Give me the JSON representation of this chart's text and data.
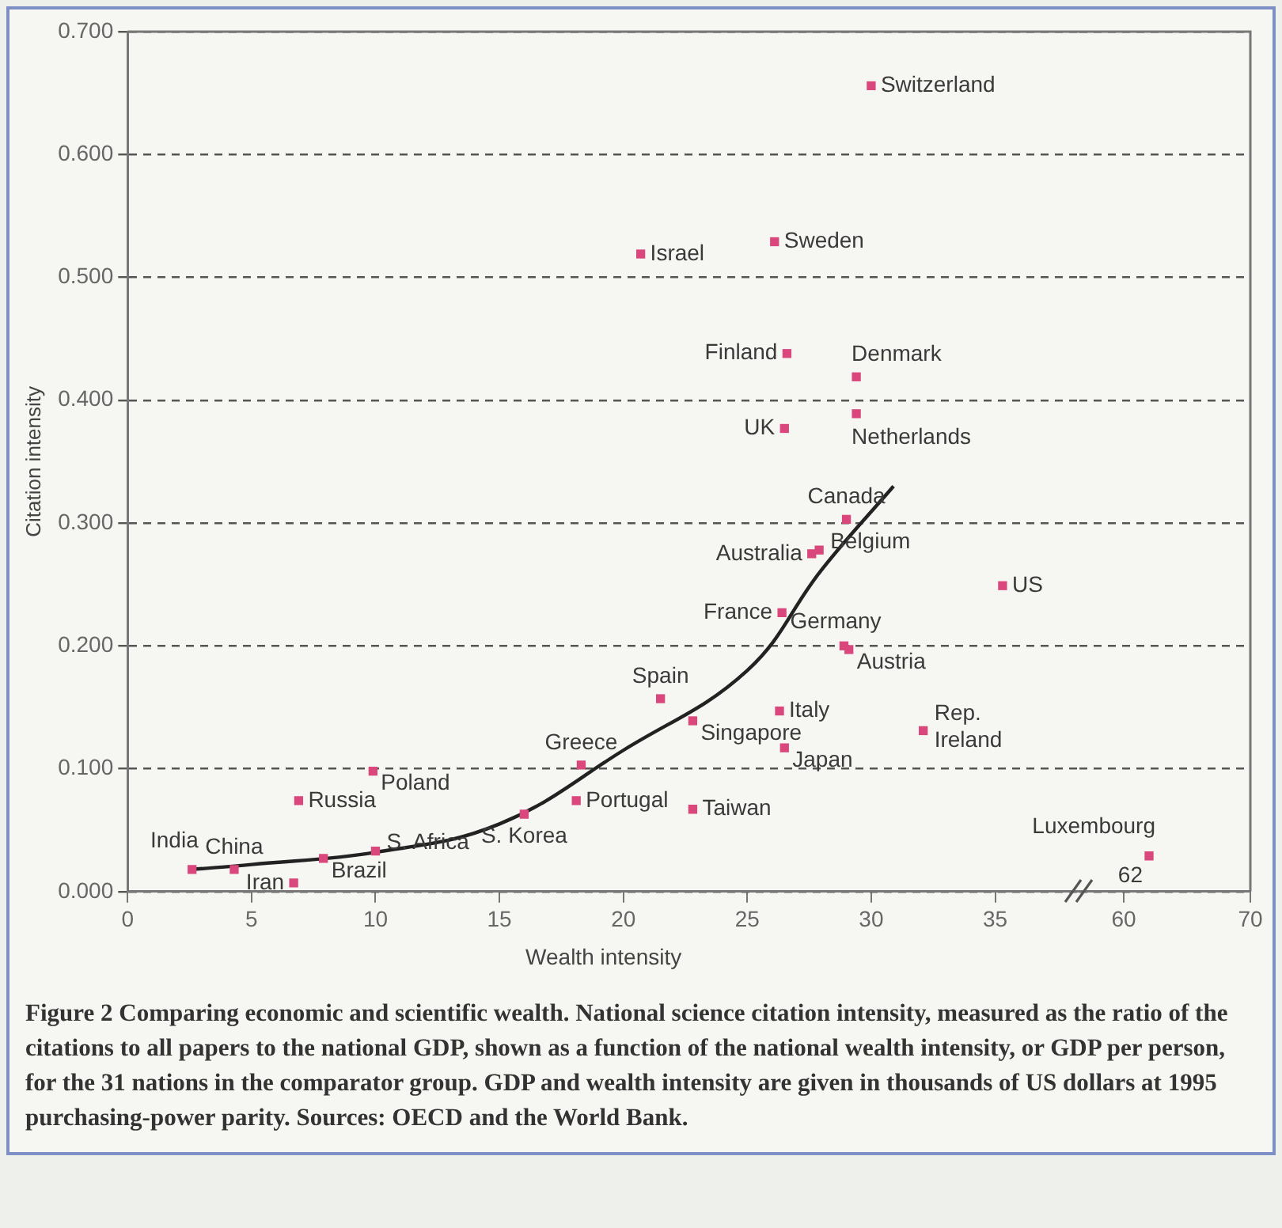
{
  "chart_data": [
    {
      "type": "scatter",
      "xlabel": "Wealth intensity",
      "ylabel": "Citation intensity",
      "xlim": [
        0,
        38.4
      ],
      "xticks": [
        0,
        5,
        10,
        15,
        20,
        25,
        30,
        35
      ],
      "ylim": [
        0,
        0.7
      ],
      "yticks": [
        {
          "value": 0,
          "label": "0.000"
        },
        {
          "value": 0.1,
          "label": "0.100"
        },
        {
          "value": 0.2,
          "label": "0.200"
        },
        {
          "value": 0.3,
          "label": "0.300"
        },
        {
          "value": 0.4,
          "label": "0.400"
        },
        {
          "value": 0.5,
          "label": "0.500"
        },
        {
          "value": 0.6,
          "label": "0.600"
        },
        {
          "value": 0.7,
          "label": "0.700"
        }
      ],
      "grid": "y",
      "marker": "square",
      "series": [
        {
          "color": "#d9477c",
          "x": [
            2.6,
            4.3,
            6.7,
            7.9,
            6.9,
            9.9,
            10.0,
            16.0,
            18.3,
            18.1,
            21.5,
            22.8,
            22.8,
            26.3,
            26.5,
            32.1,
            29.1,
            28.9,
            26.4,
            27.6,
            27.9,
            29.0,
            35.3,
            30.0,
            20.7,
            26.1,
            26.6,
            29.4,
            26.5,
            29.4
          ],
          "values": [
            0.018,
            0.018,
            0.007,
            0.027,
            0.074,
            0.098,
            0.033,
            0.063,
            0.103,
            0.074,
            0.157,
            0.067,
            0.139,
            0.147,
            0.117,
            0.131,
            0.197,
            0.2,
            0.227,
            0.275,
            0.278,
            0.303,
            0.249,
            0.656,
            0.519,
            0.529,
            0.438,
            0.419,
            0.377,
            0.389
          ]
        },
        {
          "type": "line",
          "color": "#222222",
          "marker": "none",
          "x": [
            2.6,
            5,
            10,
            15,
            20,
            25,
            28,
            30.9
          ],
          "values": [
            0.018,
            0.022,
            0.032,
            0.055,
            0.115,
            0.18,
            0.262,
            0.33
          ]
        }
      ],
      "annotations": [
        {
          "text": "India",
          "x": 2.6,
          "y": 0.018
        },
        {
          "text": "China",
          "x": 4.3,
          "y": 0.018
        },
        {
          "text": "Iran",
          "x": 6.7,
          "y": 0.007
        },
        {
          "text": "Brazil",
          "x": 7.9,
          "y": 0.027
        },
        {
          "text": "Russia",
          "x": 6.9,
          "y": 0.074
        },
        {
          "text": "Poland",
          "x": 9.9,
          "y": 0.098
        },
        {
          "text": "S. Africa",
          "x": 10.0,
          "y": 0.033
        },
        {
          "text": "S. Korea",
          "x": 16.0,
          "y": 0.063
        },
        {
          "text": "Greece",
          "x": 18.3,
          "y": 0.103
        },
        {
          "text": "Portugal",
          "x": 18.1,
          "y": 0.074
        },
        {
          "text": "Spain",
          "x": 21.5,
          "y": 0.157
        },
        {
          "text": "Taiwan",
          "x": 22.8,
          "y": 0.067
        },
        {
          "text": "Singapore",
          "x": 22.8,
          "y": 0.139
        },
        {
          "text": "Italy",
          "x": 26.3,
          "y": 0.147
        },
        {
          "text": "Japan",
          "x": 26.5,
          "y": 0.117
        },
        {
          "text": "Rep. Ireland",
          "x": 32.1,
          "y": 0.131
        },
        {
          "text": "Austria",
          "x": 29.1,
          "y": 0.197
        },
        {
          "text": "Germany",
          "x": 28.9,
          "y": 0.2
        },
        {
          "text": "France",
          "x": 26.4,
          "y": 0.227
        },
        {
          "text": "Australia",
          "x": 27.6,
          "y": 0.275
        },
        {
          "text": "Belgium",
          "x": 27.9,
          "y": 0.278
        },
        {
          "text": "Canada",
          "x": 29.0,
          "y": 0.303
        },
        {
          "text": "US",
          "x": 35.3,
          "y": 0.249
        },
        {
          "text": "Switzerland",
          "x": 30.0,
          "y": 0.656
        },
        {
          "text": "Israel",
          "x": 20.7,
          "y": 0.519
        },
        {
          "text": "Sweden",
          "x": 26.1,
          "y": 0.529
        },
        {
          "text": "Finland",
          "x": 26.6,
          "y": 0.438
        },
        {
          "text": "Denmark",
          "x": 29.4,
          "y": 0.419
        },
        {
          "text": "UK",
          "x": 26.5,
          "y": 0.377
        },
        {
          "text": "Netherlands",
          "x": 29.4,
          "y": 0.389
        },
        "Figure 2 Comparing economic and scientific wealth. National science citation intensity, measured as the ratio of the citations to all papers to the national GDP, shown as a function of the national wealth intensity, or GDP per person, for the 31 nations in the comparator group. GDP and wealth intensity are given in thousands of US dollars at 1995 purchasing-power parity. Sources: OECD and the World Bank."
      ]
    },
    {
      "type": "scatter",
      "xlim": [
        56.5,
        70
      ],
      "xticks": [
        60,
        70
      ],
      "ylim": [
        0,
        0.7
      ],
      "yticks": [
        0,
        0.1,
        0.2,
        0.3,
        0.4,
        0.5,
        0.6,
        0.7
      ],
      "tick_labels": "x",
      "grid": "y",
      "marker": "square",
      "series": [
        {
          "color": "#d9477c",
          "x": [
            62
          ],
          "values": [
            0.029
          ]
        }
      ],
      "annotations": [
        {
          "text": "Luxembourg",
          "x": 62,
          "y": 0.029
        },
        {
          "text": "62",
          "x": 62,
          "y": 0.029
        }
      ]
    }
  ]
}
